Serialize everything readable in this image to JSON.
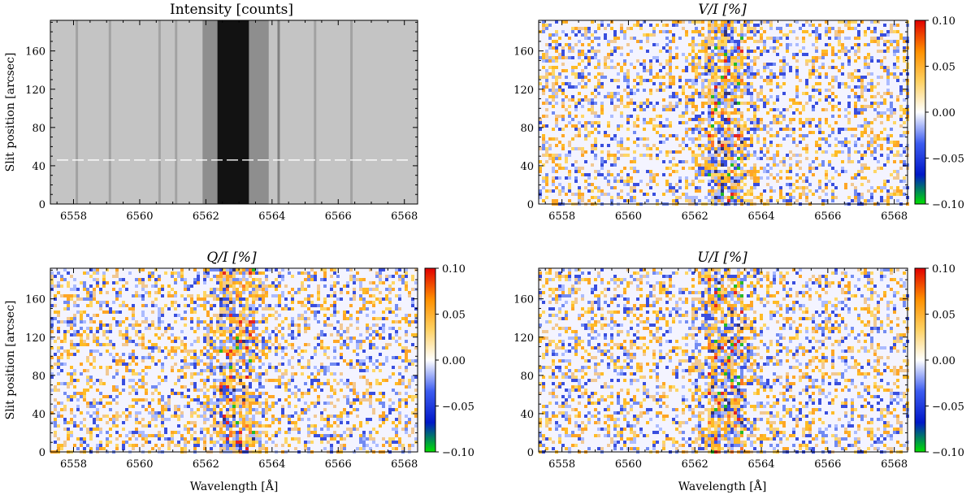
{
  "chart_data": [
    {
      "type": "heatmap",
      "title": "Intensity [counts]",
      "xlabel": "",
      "ylabel": "Slit position [arcsec]",
      "xlim": [
        6557.3,
        6568.4
      ],
      "ylim": [
        0,
        192
      ],
      "x_ticks": [
        "6558",
        "6560",
        "6562",
        "6564",
        "6566",
        "6568"
      ],
      "y_ticks": [
        "0",
        "40",
        "80",
        "120",
        "160"
      ],
      "colormap": "gray",
      "colorbar": null
    },
    {
      "type": "heatmap",
      "title": "V/I [%]",
      "xlabel": "",
      "ylabel": "",
      "xlim": [
        6557.3,
        6568.4
      ],
      "ylim": [
        0,
        192
      ],
      "x_ticks": [
        "6558",
        "6560",
        "6562",
        "6564",
        "6566",
        "6568"
      ],
      "y_ticks": [
        "0",
        "40",
        "80",
        "120",
        "160"
      ],
      "colormap": "green-blue-white-yellow-red",
      "colorbar": {
        "range": [
          -0.1,
          0.1
        ],
        "ticks": [
          "0.10",
          "0.05",
          "0.00",
          "−0.05",
          "−0.10"
        ]
      }
    },
    {
      "type": "heatmap",
      "title": "Q/I [%]",
      "xlabel": "Wavelength [Å]",
      "ylabel": "Slit position [arcsec]",
      "xlim": [
        6557.3,
        6568.4
      ],
      "ylim": [
        0,
        192
      ],
      "x_ticks": [
        "6558",
        "6560",
        "6562",
        "6564",
        "6566",
        "6568"
      ],
      "y_ticks": [
        "0",
        "40",
        "80",
        "120",
        "160"
      ],
      "colormap": "green-blue-white-yellow-red",
      "colorbar": {
        "range": [
          -0.1,
          0.1
        ],
        "ticks": [
          "0.10",
          "0.05",
          "0.00",
          "−0.05",
          "−0.10"
        ]
      }
    },
    {
      "type": "heatmap",
      "title": "U/I [%]",
      "xlabel": "Wavelength [Å]",
      "ylabel": "",
      "xlim": [
        6557.3,
        6568.4
      ],
      "ylim": [
        0,
        192
      ],
      "x_ticks": [
        "6558",
        "6560",
        "6562",
        "6564",
        "6566",
        "6568"
      ],
      "y_ticks": [
        "0",
        "40",
        "80",
        "120",
        "160"
      ],
      "colormap": "green-blue-white-yellow-red",
      "colorbar": {
        "range": [
          -0.1,
          0.1
        ],
        "ticks": [
          "0.10",
          "0.05",
          "0.00",
          "−0.05",
          "−0.10"
        ]
      }
    }
  ]
}
